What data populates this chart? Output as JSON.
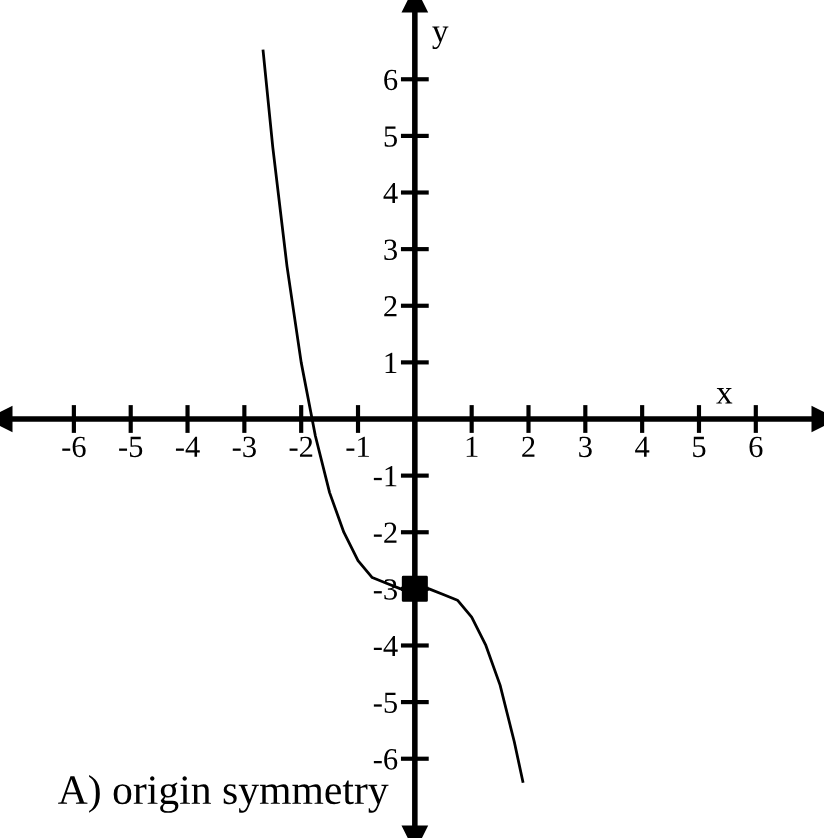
{
  "chart_data": {
    "type": "line",
    "xlabel": "x",
    "ylabel": "y",
    "annotations": [
      "A) origin symmetry"
    ],
    "xlim": [
      -7.3,
      7.2
    ],
    "ylim": [
      -7.4,
      7.4
    ],
    "xticks": [
      -6,
      -5,
      -4,
      -3,
      -2,
      -1,
      1,
      2,
      3,
      4,
      5,
      6
    ],
    "yticks": [
      -6,
      -5,
      -4,
      -3,
      -2,
      -1,
      1,
      2,
      3,
      4,
      5,
      6
    ],
    "grid": false,
    "legend": false,
    "series": [
      {
        "color": "#000000",
        "marker": "none",
        "line_style": "solid",
        "x": [
          -2.67,
          -2.5,
          -2.25,
          -2,
          -1.75,
          -1.5,
          -1.25,
          -1,
          -0.75,
          -0.5,
          -0.25,
          0,
          0.25,
          0.5,
          0.75,
          1,
          1.25,
          1.5,
          1.75,
          1.9
        ],
        "values": [
          6.5,
          4.8,
          2.7,
          1,
          -0.3,
          -1.3,
          -2,
          -2.5,
          -2.8,
          -2.9,
          -3,
          -3,
          -3,
          -3.1,
          -3.2,
          -3.5,
          -4,
          -4.7,
          -5.7,
          -6.4
        ]
      },
      {
        "type": "scatter",
        "color": "#000000",
        "marker": "square",
        "x": [
          0
        ],
        "values": [
          -3
        ]
      }
    ]
  }
}
